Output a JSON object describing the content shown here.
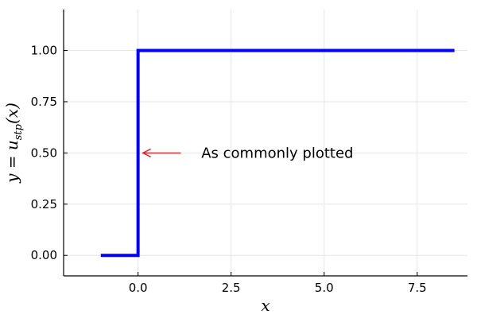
{
  "chart_data": {
    "type": "line",
    "title": "",
    "xlabel": "x",
    "ylabel_main": "y = u",
    "ylabel_sub": "stp",
    "ylabel_tail": "(x)",
    "xlim": [
      -2.0,
      8.85
    ],
    "ylim": [
      -0.1,
      1.2
    ],
    "x_ticks": [
      {
        "value": 0.0,
        "label": "0.0"
      },
      {
        "value": 2.5,
        "label": "2.5"
      },
      {
        "value": 5.0,
        "label": "5.0"
      },
      {
        "value": 7.5,
        "label": "7.5"
      }
    ],
    "y_ticks": [
      {
        "value": 0.0,
        "label": "0.00"
      },
      {
        "value": 0.25,
        "label": "0.25"
      },
      {
        "value": 0.5,
        "label": "0.50"
      },
      {
        "value": 0.75,
        "label": "0.75"
      },
      {
        "value": 1.0,
        "label": "1.00"
      }
    ],
    "grid": true,
    "series": [
      {
        "color": "#0000ff",
        "x": [
          -1.0,
          0.0,
          0.0,
          8.5
        ],
        "y": [
          0.0,
          0.0,
          1.0,
          1.0
        ]
      }
    ],
    "annotations": [
      {
        "text": "As commonly plotted",
        "arrow_from": [
          1.15,
          0.5
        ],
        "arrow_to": [
          0.0,
          0.5
        ],
        "text_at": [
          1.7,
          0.5
        ],
        "color": "#e8161c"
      }
    ]
  }
}
